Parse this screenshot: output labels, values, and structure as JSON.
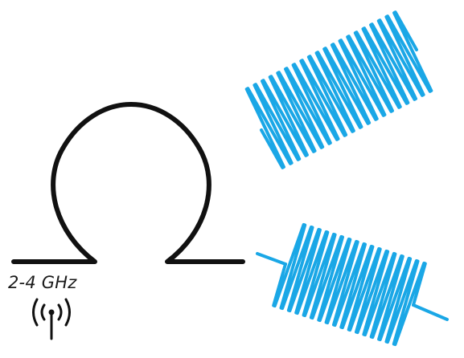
{
  "diagram": {
    "frequency_label": "2-4 GHz",
    "icons": {
      "antenna": "antenna-signal-icon"
    },
    "colors": {
      "omega": "#111111",
      "helix": "#1aa7e6",
      "label": "#1a1a1a"
    }
  }
}
